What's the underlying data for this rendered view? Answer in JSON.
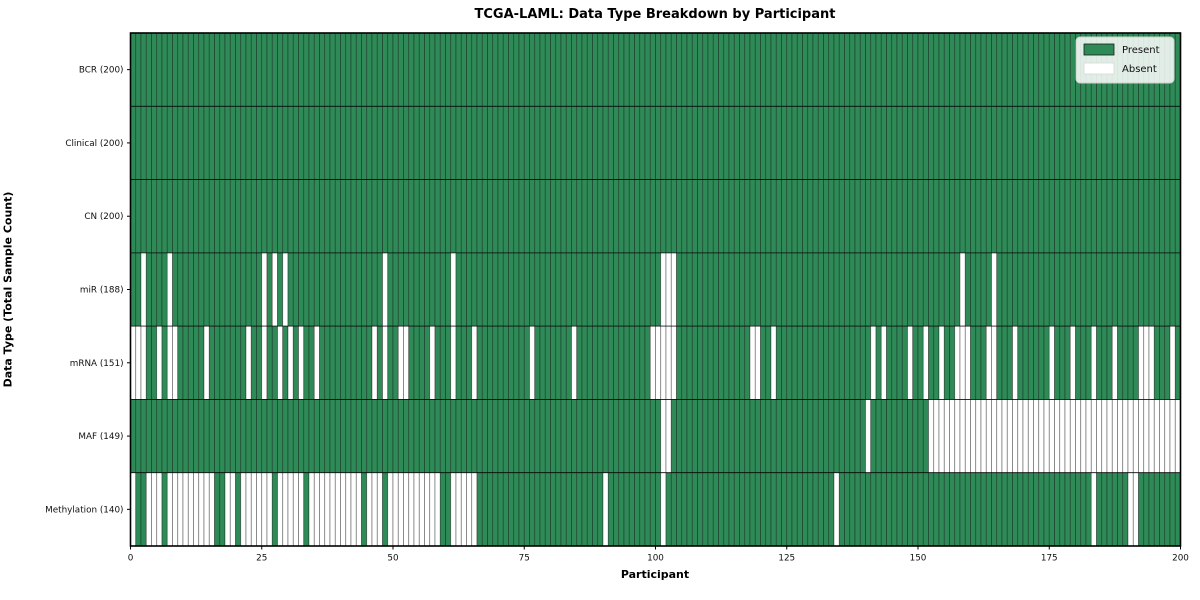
{
  "chart_data": {
    "type": "heatmap",
    "title": "TCGA-LAML: Data Type Breakdown by Participant",
    "xlabel": "Participant",
    "ylabel": "Data Type (Total Sample Count)",
    "n_participants": 200,
    "x_ticks": [
      0,
      25,
      50,
      75,
      100,
      125,
      150,
      175,
      200
    ],
    "grid": false,
    "legend_position": "upper right",
    "legend": [
      {
        "label": "Present",
        "color": "#2e8b57"
      },
      {
        "label": "Absent",
        "color": "#ffffff"
      }
    ],
    "rows": [
      {
        "label": "BCR (200)",
        "present_count": 200,
        "absent": []
      },
      {
        "label": "Clinical (200)",
        "present_count": 200,
        "absent": []
      },
      {
        "label": "CN (200)",
        "present_count": 200,
        "absent": []
      },
      {
        "label": "miR (188)",
        "present_count": 188,
        "absent": [
          2,
          7,
          25,
          27,
          29,
          48,
          61,
          101,
          102,
          103,
          158,
          164
        ]
      },
      {
        "label": "mRNA (151)",
        "present_count": 151,
        "absent": [
          0,
          1,
          2,
          5,
          7,
          8,
          14,
          22,
          25,
          28,
          30,
          32,
          35,
          46,
          48,
          51,
          52,
          57,
          61,
          65,
          76,
          84,
          99,
          100,
          101,
          102,
          103,
          118,
          119,
          122,
          141,
          143,
          148,
          151,
          154,
          157,
          158,
          159,
          163,
          164,
          168,
          175,
          179,
          183,
          187,
          192,
          193,
          194,
          198
        ]
      },
      {
        "label": "MAF (149)",
        "present_count": 149,
        "absent": [
          101,
          102,
          140,
          152,
          153,
          154,
          155,
          156,
          157,
          158,
          159,
          160,
          161,
          162,
          163,
          164,
          165,
          166,
          167,
          168,
          169,
          170,
          171,
          172,
          173,
          174,
          175,
          176,
          177,
          178,
          179,
          180,
          181,
          182,
          183,
          184,
          185,
          186,
          187,
          188,
          189,
          190,
          191,
          192,
          193,
          194,
          195,
          196,
          197,
          198,
          199
        ]
      },
      {
        "label": "Methylation (140)",
        "present_count": 140,
        "absent": [
          0,
          3,
          4,
          5,
          7,
          8,
          9,
          10,
          11,
          12,
          13,
          14,
          15,
          18,
          19,
          21,
          22,
          23,
          24,
          25,
          26,
          28,
          29,
          30,
          31,
          32,
          34,
          35,
          36,
          37,
          38,
          39,
          40,
          41,
          42,
          43,
          45,
          46,
          47,
          49,
          50,
          51,
          52,
          53,
          54,
          55,
          56,
          57,
          58,
          61,
          62,
          63,
          64,
          65,
          90,
          101,
          134,
          183,
          190,
          191
        ]
      }
    ],
    "cell_edge_color": "#1a1a1a",
    "plot_border_color": "#000000",
    "background_color": "#ffffff"
  }
}
